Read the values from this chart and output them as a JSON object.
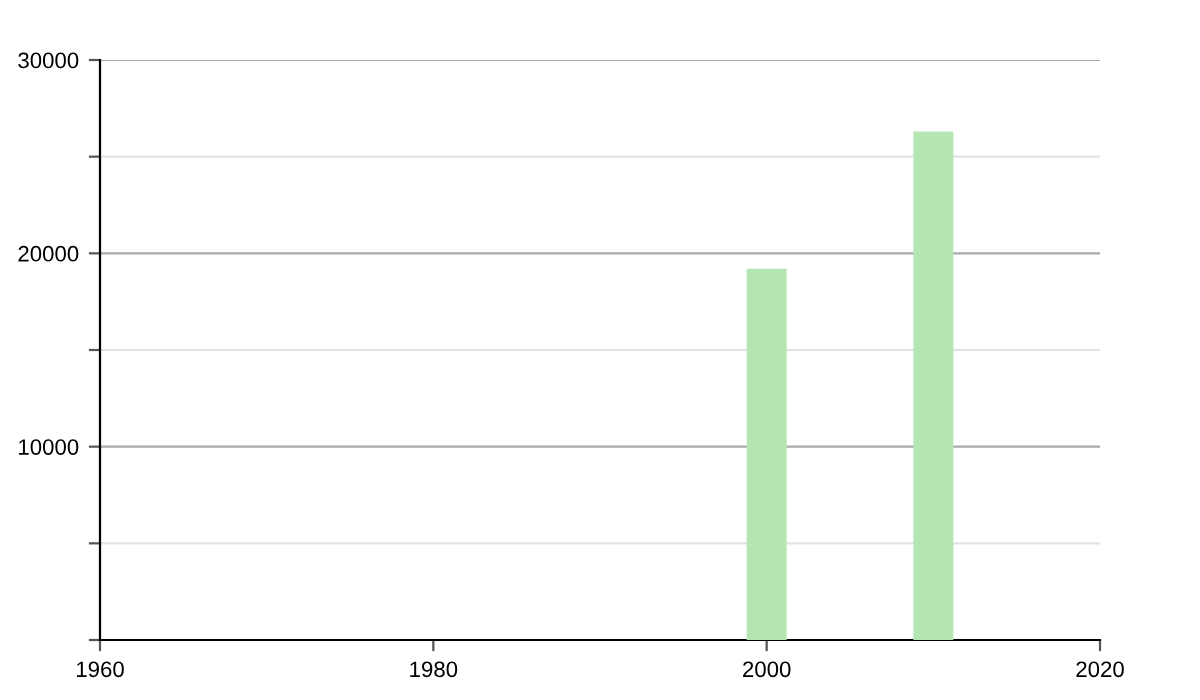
{
  "chart_data": {
    "type": "bar",
    "x": [
      2000,
      2010
    ],
    "values": [
      19200,
      26300
    ],
    "color": "#b3e6b3",
    "xlim": [
      1960,
      2020
    ],
    "xticks": [
      1960,
      1980,
      2000,
      2020
    ],
    "ylim": [
      0,
      30000
    ],
    "yticks": [
      {
        "value": 0,
        "label": null
      },
      {
        "value": 5000,
        "label": null
      },
      10000,
      {
        "value": 15000,
        "label": null
      },
      20000,
      {
        "value": 25000,
        "label": null
      },
      30000
    ],
    "grid": "y"
  }
}
